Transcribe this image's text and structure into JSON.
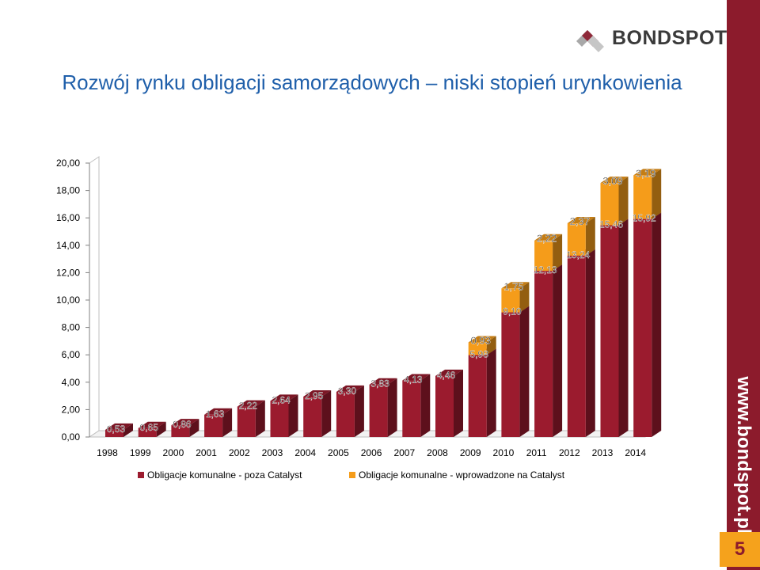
{
  "slide": {
    "title": "Rozwój rynku obligacji samorządowych – niski stopień urynkowienia",
    "logo_text": "BONDSPOT",
    "url": "www.bondspot.pl",
    "page_number": "5",
    "colors": {
      "accent": "#8c1b2c",
      "brand_blue": "#1f5faa",
      "orange": "#f5a21c"
    }
  },
  "chart_data": {
    "type": "bar",
    "stacked": true,
    "three_d": true,
    "categories": [
      "1998",
      "1999",
      "2000",
      "2001",
      "2002",
      "2003",
      "2004",
      "2005",
      "2006",
      "2007",
      "2008",
      "2009",
      "2010",
      "2011",
      "2012",
      "2013",
      "2014"
    ],
    "series": [
      {
        "name": "Obligacje komunalne - poza Catalyst",
        "color": "#9b1b2e",
        "values": [
          0.53,
          0.65,
          0.86,
          1.63,
          2.22,
          2.64,
          2.95,
          3.3,
          3.83,
          4.13,
          4.46,
          5.98,
          9.1,
          12.13,
          13.24,
          15.46,
          15.92
        ],
        "labels": [
          "0,53",
          "0,65",
          "0,86",
          "1,63",
          "2,22",
          "2,64",
          "2,95",
          "3,30",
          "3,83",
          "4,13",
          "4,46",
          "5,98",
          "9,10",
          "12,13",
          "13,24",
          "15,46",
          "15,92"
        ]
      },
      {
        "name": "Obligacje komunalne - wprowadzone na Catalyst",
        "color": "#f59c1a",
        "values": [
          0,
          0,
          0,
          0,
          0,
          0,
          0,
          0,
          0,
          0,
          0,
          0.93,
          1.75,
          2.22,
          2.37,
          3.09,
          3.19
        ],
        "labels": [
          "",
          "",
          "",
          "",
          "",
          "",
          "",
          "",
          "",
          "",
          "",
          "0,93",
          "1,75",
          "2,22",
          "2,37",
          "3,09",
          "3,19"
        ]
      }
    ],
    "y_ticks": [
      "0,00",
      "2,00",
      "4,00",
      "6,00",
      "8,00",
      "10,00",
      "12,00",
      "14,00",
      "16,00",
      "18,00",
      "20,00"
    ],
    "ylim": [
      0,
      20
    ],
    "legend_position": "bottom",
    "grid": false
  }
}
